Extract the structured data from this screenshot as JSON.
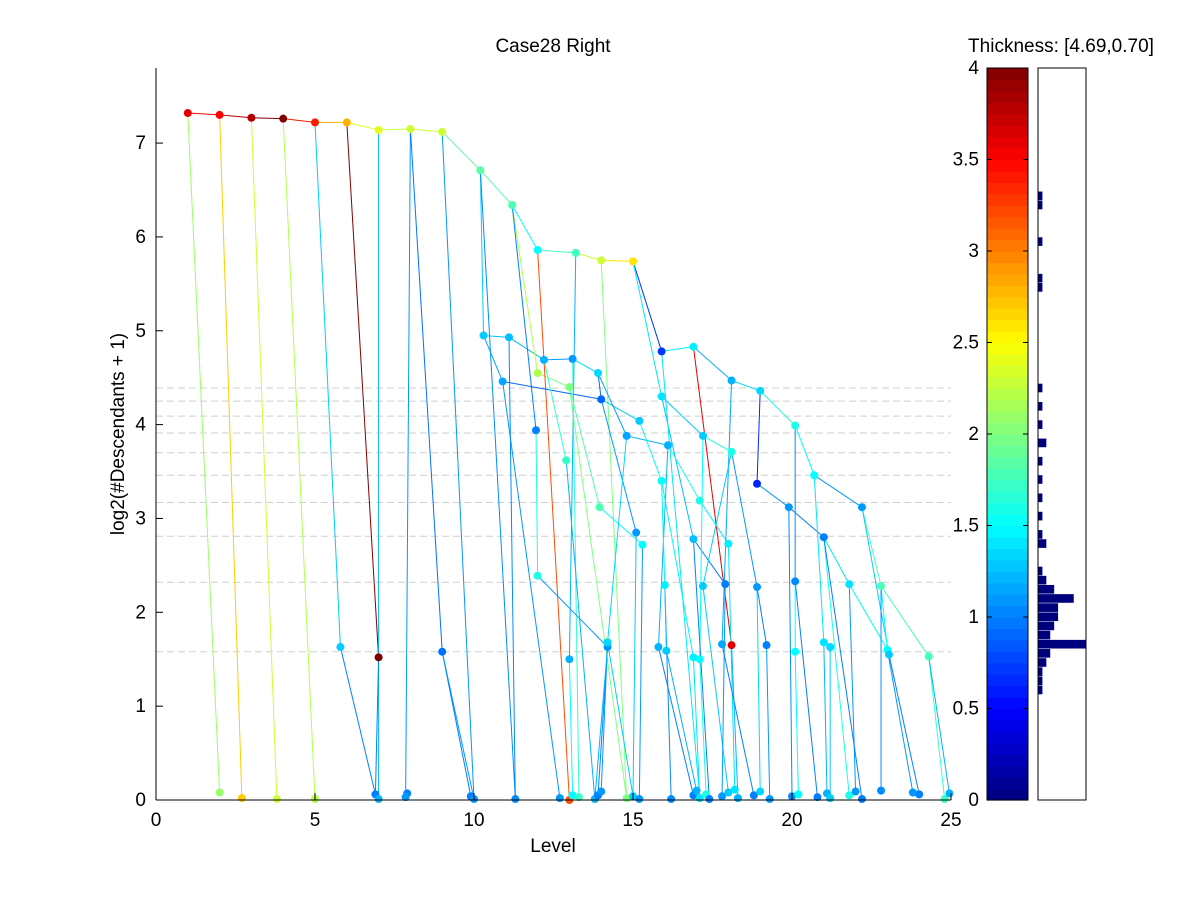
{
  "chart_data": {
    "type": "line",
    "title": "Case28 Right",
    "xlabel": "Level",
    "ylabel": "log2(#Descendants + 1)",
    "xlim": [
      0,
      25
    ],
    "ylim": [
      0,
      7.8
    ],
    "x_ticks": [
      0,
      5,
      10,
      15,
      20,
      25
    ],
    "y_ticks": [
      0,
      1,
      2,
      3,
      4,
      5,
      6,
      7
    ],
    "reference_lines_y": [
      4.39,
      4.25,
      4.09,
      3.91,
      3.7,
      3.46,
      3.17,
      2.81,
      2.32,
      1.58
    ],
    "colorbar": {
      "title": "Thickness: [4.69,0.70]",
      "range": [
        0,
        4
      ],
      "ticks": [
        0,
        0.5,
        1,
        1.5,
        2,
        2.5,
        3,
        3.5,
        4
      ],
      "colormap": "jet"
    },
    "thickness_histogram": {
      "bin_width": 0.05,
      "bins": [
        {
          "t": 0.6,
          "c": 1
        },
        {
          "t": 0.65,
          "c": 1
        },
        {
          "t": 0.7,
          "c": 1
        },
        {
          "t": 0.75,
          "c": 2
        },
        {
          "t": 0.8,
          "c": 3
        },
        {
          "t": 0.85,
          "c": 12
        },
        {
          "t": 0.9,
          "c": 3
        },
        {
          "t": 0.95,
          "c": 4
        },
        {
          "t": 1.0,
          "c": 5
        },
        {
          "t": 1.05,
          "c": 5
        },
        {
          "t": 1.1,
          "c": 9
        },
        {
          "t": 1.15,
          "c": 4
        },
        {
          "t": 1.2,
          "c": 2
        },
        {
          "t": 1.25,
          "c": 1
        },
        {
          "t": 1.4,
          "c": 2
        },
        {
          "t": 1.45,
          "c": 1
        },
        {
          "t": 1.55,
          "c": 1
        },
        {
          "t": 1.65,
          "c": 1
        },
        {
          "t": 1.75,
          "c": 1
        },
        {
          "t": 1.85,
          "c": 1
        },
        {
          "t": 1.95,
          "c": 2
        },
        {
          "t": 2.05,
          "c": 1
        },
        {
          "t": 2.15,
          "c": 1
        },
        {
          "t": 2.25,
          "c": 1
        },
        {
          "t": 2.8,
          "c": 1
        },
        {
          "t": 2.85,
          "c": 1
        },
        {
          "t": 3.05,
          "c": 1
        },
        {
          "t": 3.25,
          "c": 1
        },
        {
          "t": 3.3,
          "c": 1
        }
      ]
    },
    "nodes": [
      {
        "id": "a1",
        "x": 1.0,
        "y": 7.32,
        "t": 3.6
      },
      {
        "id": "a2",
        "x": 2.0,
        "y": 7.3,
        "t": 3.5
      },
      {
        "id": "a3",
        "x": 3.0,
        "y": 7.27,
        "t": 3.8
      },
      {
        "id": "a4",
        "x": 4.0,
        "y": 7.26,
        "t": 4.0
      },
      {
        "id": "a5",
        "x": 5.0,
        "y": 7.22,
        "t": 3.4
      },
      {
        "id": "a6",
        "x": 6.0,
        "y": 7.22,
        "t": 2.8
      },
      {
        "id": "a7",
        "x": 7.0,
        "y": 7.14,
        "t": 2.4
      },
      {
        "id": "a8",
        "x": 8.0,
        "y": 7.15,
        "t": 2.3
      },
      {
        "id": "a9",
        "x": 9.0,
        "y": 7.12,
        "t": 2.3
      },
      {
        "id": "a10",
        "x": 10.2,
        "y": 6.71,
        "t": 1.85
      },
      {
        "id": "a11",
        "x": 11.2,
        "y": 6.34,
        "t": 1.8
      },
      {
        "id": "a12",
        "x": 12.0,
        "y": 5.86,
        "t": 1.5
      },
      {
        "id": "a13",
        "x": 13.2,
        "y": 5.83,
        "t": 1.75
      },
      {
        "id": "a14",
        "x": 14.0,
        "y": 5.75,
        "t": 2.3
      },
      {
        "id": "a15",
        "x": 15.0,
        "y": 5.74,
        "t": 2.6
      },
      {
        "id": "l1",
        "x": 2.0,
        "y": 0.08,
        "t": 2.1
      },
      {
        "id": "l2",
        "x": 2.7,
        "y": 0.02,
        "t": 2.7
      },
      {
        "id": "l3",
        "x": 3.8,
        "y": 0.01,
        "t": 2.3
      },
      {
        "id": "l4",
        "x": 5.0,
        "y": 0.01,
        "t": 2.2
      },
      {
        "id": "b1",
        "x": 5.8,
        "y": 1.63,
        "t": 1.3
      },
      {
        "id": "b2",
        "x": 7.0,
        "y": 1.52,
        "t": 4.0
      },
      {
        "id": "b3",
        "x": 9.0,
        "y": 1.58,
        "t": 0.95
      },
      {
        "id": "l5",
        "x": 6.9,
        "y": 0.06,
        "t": 1.0
      },
      {
        "id": "l6",
        "x": 7.0,
        "y": 0.01,
        "t": 1.2
      },
      {
        "id": "l7",
        "x": 7.9,
        "y": 0.07,
        "t": 1.0
      },
      {
        "id": "l8",
        "x": 7.85,
        "y": 0.03,
        "t": 1.1
      },
      {
        "id": "l9",
        "x": 9.9,
        "y": 0.04,
        "t": 1.0
      },
      {
        "id": "l10",
        "x": 10.0,
        "y": 0.01,
        "t": 1.1
      },
      {
        "id": "c1",
        "x": 10.3,
        "y": 4.95,
        "t": 1.3
      },
      {
        "id": "c2",
        "x": 11.1,
        "y": 4.93,
        "t": 1.25
      },
      {
        "id": "c3",
        "x": 10.9,
        "y": 4.46,
        "t": 1.15
      },
      {
        "id": "c4",
        "x": 12.2,
        "y": 4.69,
        "t": 1.2
      },
      {
        "id": "c5",
        "x": 13.1,
        "y": 4.7,
        "t": 1.1
      },
      {
        "id": "c6",
        "x": 12.0,
        "y": 4.55,
        "t": 2.2
      },
      {
        "id": "c7",
        "x": 13.0,
        "y": 4.4,
        "t": 2.0
      },
      {
        "id": "c8",
        "x": 13.9,
        "y": 4.55,
        "t": 1.35
      },
      {
        "id": "c9",
        "x": 14.0,
        "y": 4.27,
        "t": 0.9
      },
      {
        "id": "c10",
        "x": 11.95,
        "y": 3.94,
        "t": 1.0
      },
      {
        "id": "c11",
        "x": 12.9,
        "y": 3.62,
        "t": 1.7
      },
      {
        "id": "c12",
        "x": 14.8,
        "y": 3.88,
        "t": 1.15
      },
      {
        "id": "c13",
        "x": 15.2,
        "y": 4.04,
        "t": 1.3
      },
      {
        "id": "c14",
        "x": 13.95,
        "y": 3.12,
        "t": 1.8
      },
      {
        "id": "c15",
        "x": 12.0,
        "y": 2.39,
        "t": 1.6
      },
      {
        "id": "c16",
        "x": 13.0,
        "y": 1.5,
        "t": 1.2
      },
      {
        "id": "c17",
        "x": 14.2,
        "y": 1.63,
        "t": 1.1
      },
      {
        "id": "c18",
        "x": 14.2,
        "y": 1.68,
        "t": 1.35
      },
      {
        "id": "c19",
        "x": 15.1,
        "y": 2.85,
        "t": 1.1
      },
      {
        "id": "c20",
        "x": 15.3,
        "y": 2.72,
        "t": 1.5
      },
      {
        "id": "d1",
        "x": 15.9,
        "y": 4.78,
        "t": 0.7
      },
      {
        "id": "d2",
        "x": 16.9,
        "y": 4.83,
        "t": 1.45
      },
      {
        "id": "d3",
        "x": 15.9,
        "y": 4.3,
        "t": 1.4
      },
      {
        "id": "d4",
        "x": 16.1,
        "y": 3.78,
        "t": 1.2
      },
      {
        "id": "d5",
        "x": 17.2,
        "y": 3.88,
        "t": 1.3
      },
      {
        "id": "d6",
        "x": 18.1,
        "y": 4.47,
        "t": 1.2
      },
      {
        "id": "d7",
        "x": 19.0,
        "y": 4.36,
        "t": 1.35
      },
      {
        "id": "d8",
        "x": 18.1,
        "y": 3.71,
        "t": 1.6
      },
      {
        "id": "d9",
        "x": 15.9,
        "y": 3.4,
        "t": 1.5
      },
      {
        "id": "d10",
        "x": 16.0,
        "y": 2.29,
        "t": 1.45
      },
      {
        "id": "d11",
        "x": 16.9,
        "y": 2.78,
        "t": 1.25
      },
      {
        "id": "d12",
        "x": 17.1,
        "y": 3.19,
        "t": 1.6
      },
      {
        "id": "d13",
        "x": 17.2,
        "y": 2.28,
        "t": 1.3
      },
      {
        "id": "d14",
        "x": 17.9,
        "y": 2.3,
        "t": 1.0
      },
      {
        "id": "d15",
        "x": 18.0,
        "y": 2.73,
        "t": 1.45
      },
      {
        "id": "d16",
        "x": 18.1,
        "y": 1.65,
        "t": 3.6
      },
      {
        "id": "d17",
        "x": 17.8,
        "y": 1.66,
        "t": 1.15
      },
      {
        "id": "d18",
        "x": 15.8,
        "y": 1.63,
        "t": 1.2
      },
      {
        "id": "d19",
        "x": 16.05,
        "y": 1.59,
        "t": 1.3
      },
      {
        "id": "d20",
        "x": 16.9,
        "y": 1.52,
        "t": 1.45
      },
      {
        "id": "d21",
        "x": 17.1,
        "y": 1.5,
        "t": 1.5
      },
      {
        "id": "e1",
        "x": 18.9,
        "y": 3.37,
        "t": 0.65
      },
      {
        "id": "e2",
        "x": 19.9,
        "y": 3.12,
        "t": 1.1
      },
      {
        "id": "e3",
        "x": 20.1,
        "y": 3.99,
        "t": 1.6
      },
      {
        "id": "e4",
        "x": 20.7,
        "y": 3.46,
        "t": 1.5
      },
      {
        "id": "e5",
        "x": 21.0,
        "y": 2.8,
        "t": 1.0
      },
      {
        "id": "e6",
        "x": 22.2,
        "y": 3.12,
        "t": 1.1
      },
      {
        "id": "e7",
        "x": 18.9,
        "y": 2.27,
        "t": 1.1
      },
      {
        "id": "e8",
        "x": 20.1,
        "y": 2.33,
        "t": 1.05
      },
      {
        "id": "e9",
        "x": 19.2,
        "y": 1.65,
        "t": 1.0
      },
      {
        "id": "e10",
        "x": 20.1,
        "y": 1.58,
        "t": 1.5
      },
      {
        "id": "e11",
        "x": 21.0,
        "y": 1.68,
        "t": 1.4
      },
      {
        "id": "e12",
        "x": 21.2,
        "y": 1.63,
        "t": 1.35
      },
      {
        "id": "e13",
        "x": 21.8,
        "y": 2.3,
        "t": 1.4
      },
      {
        "id": "e14",
        "x": 22.8,
        "y": 2.28,
        "t": 1.8
      },
      {
        "id": "e15",
        "x": 23.0,
        "y": 1.6,
        "t": 1.5
      },
      {
        "id": "e16",
        "x": 23.05,
        "y": 1.55,
        "t": 1.3
      },
      {
        "id": "e17",
        "x": 24.3,
        "y": 1.53,
        "t": 1.75
      },
      {
        "id": "m1",
        "x": 11.3,
        "y": 0.01,
        "t": 1.05
      },
      {
        "id": "m2",
        "x": 12.7,
        "y": 0.02,
        "t": 1.1
      },
      {
        "id": "m3",
        "x": 13.0,
        "y": 0.0,
        "t": 3.2
      },
      {
        "id": "m4",
        "x": 13.1,
        "y": 0.05,
        "t": 1.5
      },
      {
        "id": "m5",
        "x": 13.3,
        "y": 0.03,
        "t": 1.7
      },
      {
        "id": "m6",
        "x": 13.8,
        "y": 0.01,
        "t": 1.2
      },
      {
        "id": "m7",
        "x": 13.9,
        "y": 0.05,
        "t": 1.0
      },
      {
        "id": "m8",
        "x": 14.0,
        "y": 0.09,
        "t": 1.1
      },
      {
        "id": "m9",
        "x": 14.8,
        "y": 0.02,
        "t": 2.0
      },
      {
        "id": "m10",
        "x": 15.0,
        "y": 0.04,
        "t": 1.3
      },
      {
        "id": "m11",
        "x": 15.2,
        "y": 0.01,
        "t": 1.1
      },
      {
        "id": "m12",
        "x": 16.2,
        "y": 0.01,
        "t": 1.05
      },
      {
        "id": "m13",
        "x": 16.9,
        "y": 0.05,
        "t": 1.0
      },
      {
        "id": "m14",
        "x": 17.0,
        "y": 0.1,
        "t": 1.2
      },
      {
        "id": "m15",
        "x": 17.1,
        "y": 0.02,
        "t": 1.4
      },
      {
        "id": "m16",
        "x": 17.3,
        "y": 0.06,
        "t": 1.6
      },
      {
        "id": "m17",
        "x": 17.4,
        "y": 0.01,
        "t": 1.0
      },
      {
        "id": "m18",
        "x": 17.8,
        "y": 0.04,
        "t": 1.1
      },
      {
        "id": "m19",
        "x": 18.0,
        "y": 0.08,
        "t": 1.3
      },
      {
        "id": "m20",
        "x": 18.2,
        "y": 0.11,
        "t": 1.4
      },
      {
        "id": "m21",
        "x": 18.3,
        "y": 0.02,
        "t": 1.2
      },
      {
        "id": "m22",
        "x": 18.8,
        "y": 0.05,
        "t": 1.0
      },
      {
        "id": "m23",
        "x": 19.0,
        "y": 0.09,
        "t": 1.35
      },
      {
        "id": "m24",
        "x": 19.3,
        "y": 0.01,
        "t": 1.1
      },
      {
        "id": "m25",
        "x": 20.0,
        "y": 0.04,
        "t": 1.05
      },
      {
        "id": "m26",
        "x": 20.2,
        "y": 0.06,
        "t": 1.5
      },
      {
        "id": "m27",
        "x": 20.8,
        "y": 0.03,
        "t": 1.0
      },
      {
        "id": "m28",
        "x": 21.1,
        "y": 0.07,
        "t": 1.2
      },
      {
        "id": "m29",
        "x": 21.2,
        "y": 0.02,
        "t": 1.3
      },
      {
        "id": "m30",
        "x": 21.8,
        "y": 0.05,
        "t": 1.6
      },
      {
        "id": "m31",
        "x": 22.0,
        "y": 0.09,
        "t": 1.1
      },
      {
        "id": "m32",
        "x": 22.2,
        "y": 0.01,
        "t": 1.0
      },
      {
        "id": "m33",
        "x": 22.8,
        "y": 0.1,
        "t": 1.05
      },
      {
        "id": "m34",
        "x": 23.8,
        "y": 0.08,
        "t": 1.1
      },
      {
        "id": "m35",
        "x": 24.0,
        "y": 0.06,
        "t": 1.0
      },
      {
        "id": "m36",
        "x": 24.8,
        "y": 0.01,
        "t": 1.7
      },
      {
        "id": "m37",
        "x": 24.95,
        "y": 0.07,
        "t": 1.2
      }
    ],
    "edges": [
      [
        "a1",
        "a2"
      ],
      [
        "a2",
        "a3"
      ],
      [
        "a3",
        "a4"
      ],
      [
        "a4",
        "a5"
      ],
      [
        "a5",
        "a6"
      ],
      [
        "a6",
        "a7"
      ],
      [
        "a7",
        "a8"
      ],
      [
        "a8",
        "a9"
      ],
      [
        "a9",
        "a10"
      ],
      [
        "a10",
        "a11"
      ],
      [
        "a11",
        "a12"
      ],
      [
        "a12",
        "a13"
      ],
      [
        "a13",
        "a14"
      ],
      [
        "a14",
        "a15"
      ],
      [
        "a1",
        "l1"
      ],
      [
        "a2",
        "l2"
      ],
      [
        "a3",
        "l3"
      ],
      [
        "a4",
        "l4"
      ],
      [
        "a5",
        "b1"
      ],
      [
        "a6",
        "b2"
      ],
      [
        "a7",
        "l6"
      ],
      [
        "a8",
        "l8"
      ],
      [
        "a9",
        "l10"
      ],
      [
        "b1",
        "l5"
      ],
      [
        "b2",
        "l5"
      ],
      [
        "b3",
        "l9"
      ],
      [
        "b3",
        "l10"
      ],
      [
        "a8",
        "b3"
      ],
      [
        "a10",
        "c1"
      ],
      [
        "a10",
        "m1"
      ],
      [
        "c1",
        "c2"
      ],
      [
        "c2",
        "c4"
      ],
      [
        "c4",
        "c5"
      ],
      [
        "c5",
        "c8"
      ],
      [
        "c8",
        "c9"
      ],
      [
        "a11",
        "c6"
      ],
      [
        "c6",
        "c7"
      ],
      [
        "c7",
        "m9"
      ],
      [
        "a11",
        "c10"
      ],
      [
        "a12",
        "m3"
      ],
      [
        "a13",
        "c16"
      ],
      [
        "a14",
        "m9"
      ],
      [
        "c3",
        "c9"
      ],
      [
        "c3",
        "m2"
      ],
      [
        "c4",
        "c11"
      ],
      [
        "c5",
        "m5"
      ],
      [
        "c9",
        "c13"
      ],
      [
        "c9",
        "c19"
      ],
      [
        "c10",
        "c15"
      ],
      [
        "c15",
        "c17"
      ],
      [
        "c11",
        "m6"
      ],
      [
        "c14",
        "c20"
      ],
      [
        "c7",
        "c14"
      ],
      [
        "c8",
        "c12"
      ],
      [
        "c12",
        "d4"
      ],
      [
        "c13",
        "d9"
      ],
      [
        "c16",
        "m4"
      ],
      [
        "c17",
        "m7"
      ],
      [
        "c18",
        "m8"
      ],
      [
        "c12",
        "c18"
      ],
      [
        "c19",
        "m10"
      ],
      [
        "c20",
        "m11"
      ],
      [
        "c1",
        "c3"
      ],
      [
        "c2",
        "m1"
      ],
      [
        "a15",
        "d1"
      ],
      [
        "d1",
        "d2"
      ],
      [
        "d2",
        "d6"
      ],
      [
        "d6",
        "d7"
      ],
      [
        "d7",
        "e3"
      ],
      [
        "e3",
        "e4"
      ],
      [
        "e4",
        "e6"
      ],
      [
        "e6",
        "e14"
      ],
      [
        "e14",
        "e17"
      ],
      [
        "a15",
        "d3"
      ],
      [
        "d3",
        "d5"
      ],
      [
        "d5",
        "d8"
      ],
      [
        "d8",
        "e7"
      ],
      [
        "d2",
        "d16"
      ],
      [
        "d3",
        "d11"
      ],
      [
        "d4",
        "d18"
      ],
      [
        "d4",
        "d12"
      ],
      [
        "d9",
        "d10"
      ],
      [
        "d10",
        "m12"
      ],
      [
        "d11",
        "d14"
      ],
      [
        "d12",
        "d15"
      ],
      [
        "d15",
        "m20"
      ],
      [
        "d6",
        "d17"
      ],
      [
        "d7",
        "e1"
      ],
      [
        "e1",
        "e2"
      ],
      [
        "e2",
        "e5"
      ],
      [
        "e5",
        "e13"
      ],
      [
        "e13",
        "e15"
      ],
      [
        "d8",
        "d13"
      ],
      [
        "e3",
        "e8"
      ],
      [
        "e4",
        "e11"
      ],
      [
        "e8",
        "e10"
      ],
      [
        "e6",
        "e16"
      ],
      [
        "e14",
        "e15"
      ],
      [
        "d13",
        "m19"
      ],
      [
        "d14",
        "m18"
      ],
      [
        "d16",
        "m21"
      ],
      [
        "d17",
        "m22"
      ],
      [
        "d18",
        "m13"
      ],
      [
        "d19",
        "m14"
      ],
      [
        "d20",
        "m15"
      ],
      [
        "d21",
        "m16"
      ],
      [
        "d1",
        "m15"
      ],
      [
        "d5",
        "d21"
      ],
      [
        "d9",
        "d20"
      ],
      [
        "d10",
        "d19"
      ],
      [
        "e7",
        "m23"
      ],
      [
        "e9",
        "m24"
      ],
      [
        "e10",
        "m26"
      ],
      [
        "e11",
        "m28"
      ],
      [
        "e12",
        "m29"
      ],
      [
        "e13",
        "m31"
      ],
      [
        "e15",
        "m34"
      ],
      [
        "e16",
        "m35"
      ],
      [
        "e17",
        "m36"
      ],
      [
        "e17",
        "m37"
      ],
      [
        "e2",
        "m25"
      ],
      [
        "e5",
        "m30"
      ],
      [
        "e5",
        "m32"
      ],
      [
        "d11",
        "m17"
      ],
      [
        "e7",
        "e9"
      ],
      [
        "e8",
        "m27"
      ],
      [
        "e11",
        "e12"
      ],
      [
        "e14",
        "m33"
      ],
      [
        "c17",
        "m6"
      ],
      [
        "c18",
        "m10"
      ]
    ]
  }
}
